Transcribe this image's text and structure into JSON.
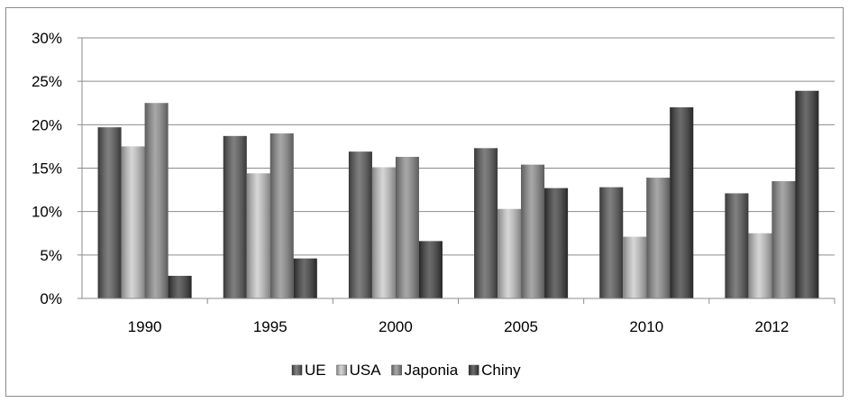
{
  "chart_data": {
    "type": "bar",
    "categories": [
      "1990",
      "1995",
      "2000",
      "2005",
      "2010",
      "2012"
    ],
    "series": [
      {
        "name": "UE",
        "values": [
          19.7,
          18.7,
          16.9,
          17.3,
          12.8,
          12.1
        ],
        "color": "#555555"
      },
      {
        "name": "USA",
        "values": [
          17.5,
          14.4,
          15.1,
          10.3,
          7.1,
          7.5
        ],
        "color": "#c8c8c8"
      },
      {
        "name": "Japonia",
        "values": [
          22.5,
          19.0,
          16.3,
          15.4,
          13.9,
          13.5
        ],
        "color": "#8a8a8a"
      },
      {
        "name": "Chiny",
        "values": [
          2.6,
          4.6,
          6.6,
          12.7,
          22.0,
          23.9
        ],
        "color": "#3a3a3a"
      }
    ],
    "title": "",
    "xlabel": "",
    "ylabel": "",
    "ylim": [
      0,
      30
    ],
    "yticks": [
      "0%",
      "5%",
      "10%",
      "15%",
      "20%",
      "25%",
      "30%"
    ],
    "grid": true,
    "legend": "bottom"
  }
}
